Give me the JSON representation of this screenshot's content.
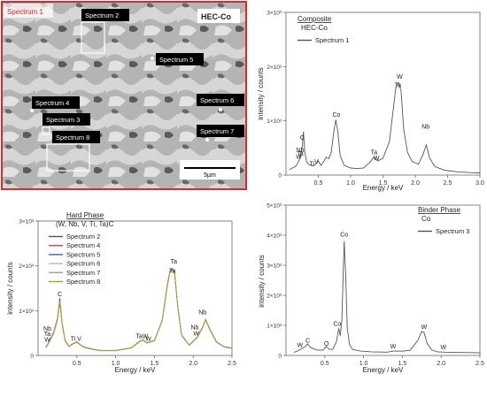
{
  "colors": {
    "red_frame": "#e0262a",
    "axis": "#555555",
    "black": "#222222"
  },
  "sem": {
    "frame_label": "Spectrum 1",
    "title": "HEC-Co",
    "scale_label": "5µm",
    "labels": [
      "Spectrum 2",
      "Spectrum 5",
      "Spectrum 4",
      "Spectrum 6",
      "Spectrum 3",
      "Spectrum 7",
      "Spectrum 8"
    ]
  },
  "chart_data": [
    {
      "type": "line",
      "legend_title": "Composite",
      "legend_subtitle": "HEC-Co",
      "ylabel": "intensity / counts",
      "xlabel": "Energy / keV",
      "xlim": [
        0,
        3.0
      ],
      "ylim": [
        0,
        3000
      ],
      "xticks": [
        "0.5",
        "1.0",
        "1.5",
        "2.0",
        "2.5",
        "3.0"
      ],
      "yticks": [
        "0",
        "1×10³",
        "2×10³",
        "3×10³"
      ],
      "series": [
        {
          "name": "Spectrum 1",
          "color": "#555555",
          "x": [
            0.05,
            0.1,
            0.15,
            0.2,
            0.25,
            0.27,
            0.29,
            0.32,
            0.36,
            0.42,
            0.46,
            0.5,
            0.54,
            0.58,
            0.62,
            0.66,
            0.7,
            0.74,
            0.77,
            0.8,
            0.84,
            0.9,
            1.0,
            1.1,
            1.2,
            1.3,
            1.36,
            1.42,
            1.5,
            1.6,
            1.66,
            1.7,
            1.74,
            1.78,
            1.82,
            1.88,
            1.95,
            2.05,
            2.12,
            2.17,
            2.22,
            2.3,
            2.45,
            2.65,
            2.85,
            3.0
          ],
          "y": [
            100,
            130,
            160,
            260,
            520,
            800,
            420,
            240,
            190,
            170,
            200,
            260,
            180,
            240,
            330,
            300,
            420,
            800,
            1020,
            820,
            350,
            180,
            130,
            120,
            130,
            240,
            330,
            260,
            310,
            620,
            1220,
            1620,
            1700,
            1560,
            850,
            420,
            250,
            200,
            380,
            560,
            320,
            160,
            90,
            60,
            45,
            40
          ]
        }
      ],
      "annotations": [
        "C",
        "Nb",
        "Ta",
        "W",
        "Ti",
        "V",
        "Co",
        "Ta",
        "W",
        "W",
        "Ta",
        "Nb"
      ]
    },
    {
      "type": "line",
      "legend_title": "Hard Phase",
      "legend_subtitle": "(W, Nb, V, Ti, Ta)C",
      "ylabel": "intensity / counts",
      "xlabel": "Energy / keV",
      "xlim": [
        0,
        2.5
      ],
      "ylim": [
        0,
        3000
      ],
      "xticks": [
        "0.5",
        "1.0",
        "1.5",
        "2.0",
        "2.5"
      ],
      "yticks": [
        "0",
        "1×10³",
        "2×10³",
        "3×10³"
      ],
      "series": [
        {
          "name": "Spectrum 2",
          "color": "#555555",
          "x": [
            0.1,
            0.15,
            0.2,
            0.25,
            0.28,
            0.31,
            0.35,
            0.4,
            0.45,
            0.5,
            0.55,
            0.6,
            0.7,
            0.8,
            1.0,
            1.2,
            1.3,
            1.35,
            1.4,
            1.5,
            1.6,
            1.66,
            1.7,
            1.73,
            1.76,
            1.8,
            1.85,
            1.95,
            2.05,
            2.12,
            2.16,
            2.22,
            2.3,
            2.4,
            2.5
          ],
          "y": [
            180,
            320,
            500,
            800,
            1220,
            700,
            320,
            200,
            260,
            300,
            230,
            180,
            140,
            110,
            110,
            170,
            300,
            350,
            280,
            330,
            780,
            1500,
            1880,
            1930,
            1850,
            1100,
            450,
            230,
            400,
            620,
            800,
            560,
            300,
            190,
            160
          ]
        },
        {
          "name": "Spectrum 4",
          "color": "#e04040",
          "x": [
            0.1,
            0.15,
            0.2,
            0.25,
            0.28,
            0.31,
            0.35,
            0.4,
            0.45,
            0.5,
            0.55,
            0.6,
            0.7,
            0.8,
            1.0,
            1.2,
            1.3,
            1.35,
            1.4,
            1.5,
            1.6,
            1.66,
            1.7,
            1.73,
            1.76,
            1.8,
            1.85,
            1.95,
            2.05,
            2.12,
            2.16,
            2.22,
            2.3,
            2.4,
            2.5
          ],
          "y": [
            170,
            310,
            490,
            790,
            1200,
            690,
            310,
            195,
            255,
            295,
            225,
            175,
            135,
            105,
            105,
            165,
            295,
            345,
            275,
            325,
            770,
            1480,
            1860,
            1910,
            1830,
            1090,
            445,
            225,
            395,
            610,
            790,
            550,
            295,
            185,
            155
          ]
        },
        {
          "name": "Spectrum 5",
          "color": "#3a56d8",
          "x": [
            0.1,
            0.15,
            0.2,
            0.25,
            0.28,
            0.31,
            0.35,
            0.4,
            0.45,
            0.5,
            0.55,
            0.6,
            0.7,
            0.8,
            1.0,
            1.2,
            1.3,
            1.35,
            1.4,
            1.5,
            1.6,
            1.66,
            1.7,
            1.73,
            1.76,
            1.8,
            1.85,
            1.95,
            2.05,
            2.12,
            2.16,
            2.22,
            2.3,
            2.4,
            2.5
          ],
          "y": [
            185,
            330,
            520,
            830,
            1280,
            720,
            330,
            205,
            265,
            305,
            235,
            185,
            145,
            115,
            112,
            172,
            305,
            355,
            285,
            335,
            790,
            1510,
            1890,
            1940,
            1860,
            1110,
            455,
            235,
            405,
            630,
            810,
            570,
            305,
            195,
            165
          ]
        },
        {
          "name": "Spectrum 6",
          "color": "#c8a8d8",
          "x": [
            0.1,
            0.15,
            0.2,
            0.25,
            0.28,
            0.31,
            0.35,
            0.4,
            0.45,
            0.5,
            0.55,
            0.6,
            0.7,
            0.8,
            1.0,
            1.2,
            1.3,
            1.35,
            1.4,
            1.5,
            1.6,
            1.66,
            1.7,
            1.73,
            1.76,
            1.8,
            1.85,
            1.95,
            2.05,
            2.12,
            2.16,
            2.22,
            2.3,
            2.4,
            2.5
          ],
          "y": [
            175,
            315,
            495,
            795,
            1210,
            695,
            315,
            198,
            258,
            298,
            228,
            178,
            138,
            108,
            108,
            168,
            298,
            348,
            278,
            328,
            775,
            1490,
            1870,
            1920,
            1840,
            1095,
            448,
            228,
            398,
            615,
            795,
            555,
            298,
            188,
            158
          ]
        },
        {
          "name": "Spectrum 7",
          "color": "#9aa0a8",
          "x": [
            0.1,
            0.15,
            0.2,
            0.25,
            0.28,
            0.31,
            0.35,
            0.4,
            0.45,
            0.5,
            0.55,
            0.6,
            0.7,
            0.8,
            1.0,
            1.2,
            1.3,
            1.35,
            1.4,
            1.5,
            1.6,
            1.66,
            1.7,
            1.73,
            1.76,
            1.8,
            1.85,
            1.95,
            2.05,
            2.12,
            2.16,
            2.22,
            2.3,
            2.4,
            2.5
          ],
          "y": [
            178,
            318,
            498,
            798,
            1215,
            698,
            318,
            199,
            259,
            299,
            229,
            179,
            139,
            109,
            109,
            169,
            299,
            349,
            279,
            329,
            778,
            1495,
            1875,
            1925,
            1845,
            1098,
            449,
            229,
            399,
            618,
            798,
            558,
            299,
            189,
            159
          ]
        },
        {
          "name": "Spectrum 8",
          "color": "#b0a020",
          "x": [
            0.1,
            0.15,
            0.2,
            0.25,
            0.28,
            0.31,
            0.35,
            0.4,
            0.45,
            0.5,
            0.55,
            0.6,
            0.7,
            0.8,
            1.0,
            1.2,
            1.3,
            1.35,
            1.4,
            1.5,
            1.6,
            1.66,
            1.7,
            1.73,
            1.76,
            1.8,
            1.85,
            1.95,
            2.05,
            2.12,
            2.16,
            2.22,
            2.3,
            2.4,
            2.5
          ],
          "y": [
            176,
            316,
            496,
            796,
            1212,
            696,
            316,
            197,
            257,
            297,
            227,
            177,
            137,
            107,
            107,
            167,
            297,
            347,
            277,
            327,
            776,
            1492,
            1872,
            1922,
            1842,
            1096,
            447,
            227,
            397,
            616,
            796,
            556,
            297,
            187,
            157
          ]
        }
      ],
      "annotations": [
        "Nb",
        "Ta",
        "W",
        "C",
        "Ti",
        "V",
        "TaW",
        "W",
        "Ta",
        "Ta",
        "Nb",
        "W",
        "Nb"
      ]
    },
    {
      "type": "line",
      "legend_title": "Binder Phase",
      "legend_subtitle": "Co",
      "ylabel": "intensity / counts",
      "xlabel": "Energy / keV",
      "xlim": [
        0,
        2.5
      ],
      "ylim": [
        0,
        5000
      ],
      "xticks": [
        "0.5",
        "1.0",
        "1.5",
        "2.0",
        "2.5"
      ],
      "yticks": [
        "0",
        "1×10³",
        "2×10³",
        "3×10³",
        "4×10³",
        "5×10³"
      ],
      "series": [
        {
          "name": "Spectrum 3",
          "color": "#555555",
          "x": [
            0.1,
            0.15,
            0.2,
            0.25,
            0.28,
            0.32,
            0.4,
            0.48,
            0.52,
            0.56,
            0.6,
            0.65,
            0.68,
            0.7,
            0.72,
            0.75,
            0.77,
            0.79,
            0.82,
            0.86,
            0.95,
            1.1,
            1.3,
            1.4,
            1.5,
            1.6,
            1.7,
            1.75,
            1.78,
            1.82,
            1.88,
            1.95,
            2.05,
            2.2,
            2.35,
            2.5
          ],
          "y": [
            100,
            150,
            220,
            300,
            380,
            260,
            180,
            180,
            300,
            200,
            200,
            450,
            900,
            650,
            1200,
            3800,
            2600,
            900,
            350,
            200,
            150,
            120,
            110,
            150,
            140,
            170,
            500,
            800,
            760,
            400,
            180,
            120,
            110,
            100,
            95,
            90
          ]
        }
      ],
      "annotations": [
        "C",
        "W",
        "O",
        "Co",
        "Co",
        "W",
        "W",
        "W"
      ]
    }
  ]
}
